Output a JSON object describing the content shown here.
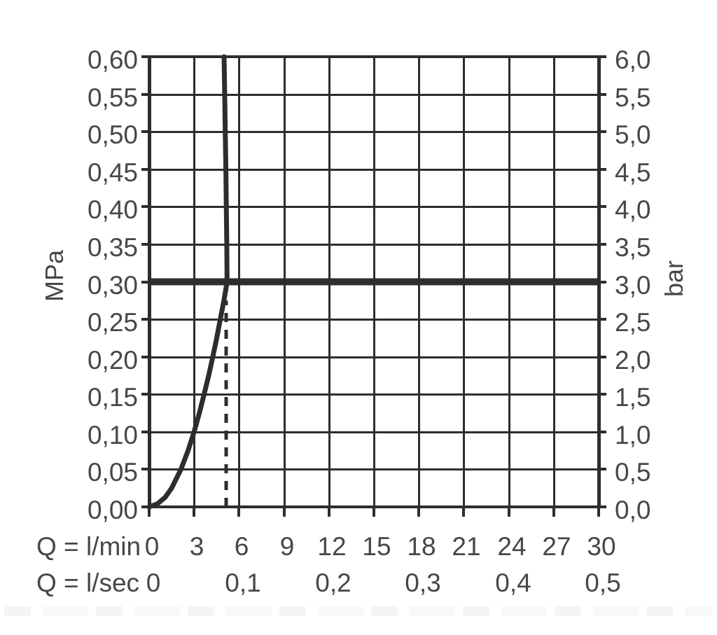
{
  "figure": {
    "background": "#ffffff",
    "line_color": "#2d2d2d",
    "text_color": "#474747"
  },
  "chart_data": {
    "type": "line",
    "title": "",
    "grid": true,
    "left_axis": {
      "label": "MPa",
      "min": 0,
      "max": 0.6,
      "step": 0.05,
      "ticks": [
        "0,60",
        "0,55",
        "0,50",
        "0,45",
        "0,40",
        "0,35",
        "0,30",
        "0,25",
        "0,20",
        "0,15",
        "0,10",
        "0,05",
        "0,00"
      ]
    },
    "right_axis": {
      "label": "bar",
      "min": 0,
      "max": 6.0,
      "step": 0.5,
      "ticks": [
        "6,0",
        "5,5",
        "5,0",
        "4,5",
        "4,0",
        "3,5",
        "3,0",
        "2,5",
        "2,0",
        "1,5",
        "1,0",
        "0,5",
        "0,0"
      ]
    },
    "x_axis_lmin": {
      "label": "Q = l/min",
      "min": 0,
      "max": 30,
      "step": 3,
      "ticks": [
        "0",
        "3",
        "6",
        "9",
        "12",
        "15",
        "18",
        "21",
        "24",
        "27",
        "30"
      ]
    },
    "x_axis_lsec": {
      "label": "Q = l/sec",
      "step_lmin_equivalent": 6,
      "ticks": [
        "0",
        "0,1",
        "0,2",
        "0,3",
        "0,4",
        "0,5"
      ]
    },
    "reference_line": {
      "name": "3-bar-reference",
      "value_mpa": 0.3,
      "value_bar": 3.0,
      "stroke_px": 10
    },
    "series": [
      {
        "name": "flow-curve",
        "stroke_px": 7,
        "points_lmin_mpa": [
          [
            0.0,
            0.0
          ],
          [
            0.55,
            0.004
          ],
          [
            1.06,
            0.0125
          ],
          [
            1.5,
            0.025
          ],
          [
            2.12,
            0.05
          ],
          [
            2.6,
            0.075
          ],
          [
            3.0,
            0.1
          ],
          [
            3.35,
            0.125
          ],
          [
            3.67,
            0.15
          ],
          [
            3.97,
            0.175
          ],
          [
            4.25,
            0.2
          ],
          [
            4.51,
            0.225
          ],
          [
            4.75,
            0.25
          ],
          [
            4.99,
            0.275
          ],
          [
            5.2,
            0.3
          ],
          [
            5.18,
            0.35
          ],
          [
            5.15,
            0.4
          ],
          [
            5.12,
            0.45
          ],
          [
            5.08,
            0.5
          ],
          [
            5.04,
            0.55
          ],
          [
            5.0,
            0.6
          ]
        ]
      }
    ],
    "indicator": {
      "name": "flow-at-3-bar-dashed-line",
      "q_lmin": 5.14,
      "from_mpa": 0.0,
      "to_mpa": 0.275,
      "stroke_px": 5,
      "dash": [
        13,
        11
      ]
    }
  }
}
